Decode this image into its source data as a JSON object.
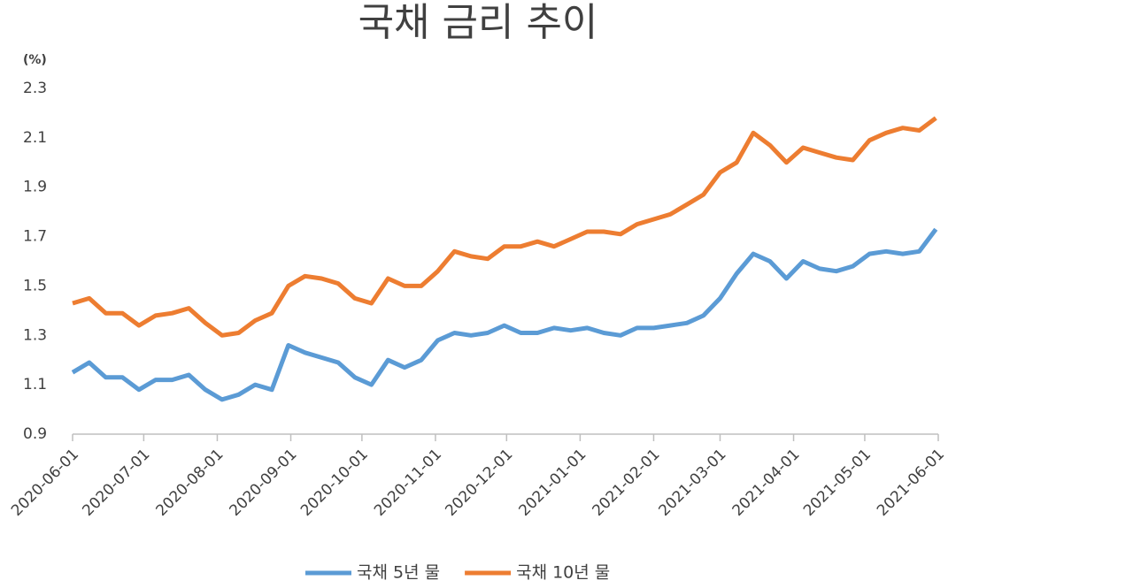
{
  "chart_data": {
    "type": "line",
    "title": "국채 금리 추이",
    "ylabel": "(%)",
    "x": [
      "2020-06-01",
      "2020-06-08",
      "2020-06-15",
      "2020-06-22",
      "2020-06-29",
      "2020-07-06",
      "2020-07-13",
      "2020-07-20",
      "2020-07-27",
      "2020-08-03",
      "2020-08-10",
      "2020-08-17",
      "2020-08-24",
      "2020-08-31",
      "2020-09-07",
      "2020-09-14",
      "2020-09-21",
      "2020-09-28",
      "2020-10-05",
      "2020-10-12",
      "2020-10-19",
      "2020-10-26",
      "2020-11-02",
      "2020-11-09",
      "2020-11-16",
      "2020-11-23",
      "2020-11-30",
      "2020-12-07",
      "2020-12-14",
      "2020-12-21",
      "2020-12-28",
      "2021-01-04",
      "2021-01-11",
      "2021-01-18",
      "2021-01-25",
      "2021-02-01",
      "2021-02-08",
      "2021-02-15",
      "2021-02-22",
      "2021-03-01",
      "2021-03-08",
      "2021-03-15",
      "2021-03-22",
      "2021-03-29",
      "2021-04-05",
      "2021-04-12",
      "2021-04-19",
      "2021-04-26",
      "2021-05-03",
      "2021-05-10",
      "2021-05-17",
      "2021-05-24",
      "2021-05-31"
    ],
    "series": [
      {
        "name": "국채 5년 물",
        "color": "#5b9bd5",
        "values": [
          1.15,
          1.19,
          1.13,
          1.13,
          1.08,
          1.12,
          1.12,
          1.14,
          1.08,
          1.04,
          1.06,
          1.1,
          1.08,
          1.26,
          1.23,
          1.21,
          1.19,
          1.13,
          1.1,
          1.2,
          1.17,
          1.2,
          1.28,
          1.31,
          1.3,
          1.31,
          1.34,
          1.31,
          1.31,
          1.33,
          1.32,
          1.33,
          1.31,
          1.3,
          1.33,
          1.33,
          1.34,
          1.35,
          1.38,
          1.45,
          1.55,
          1.63,
          1.6,
          1.53,
          1.6,
          1.57,
          1.56,
          1.58,
          1.63,
          1.64,
          1.63,
          1.64,
          1.73
        ]
      },
      {
        "name": "국채 10년 물",
        "color": "#ed7d31",
        "values": [
          1.43,
          1.45,
          1.39,
          1.39,
          1.34,
          1.38,
          1.39,
          1.41,
          1.35,
          1.3,
          1.31,
          1.36,
          1.39,
          1.5,
          1.54,
          1.53,
          1.51,
          1.45,
          1.43,
          1.53,
          1.5,
          1.5,
          1.56,
          1.64,
          1.62,
          1.61,
          1.66,
          1.66,
          1.68,
          1.66,
          1.69,
          1.72,
          1.72,
          1.71,
          1.75,
          1.77,
          1.79,
          1.83,
          1.87,
          1.96,
          2.0,
          2.12,
          2.07,
          2.0,
          2.06,
          2.04,
          2.02,
          2.01,
          2.09,
          2.12,
          2.14,
          2.13,
          2.18
        ]
      }
    ],
    "xlim": [
      "2020-06-01",
      "2021-06-01"
    ],
    "xticks": [
      "2020-06-01",
      "2020-07-01",
      "2020-08-01",
      "2020-09-01",
      "2020-10-01",
      "2020-11-01",
      "2020-12-01",
      "2021-01-01",
      "2021-02-01",
      "2021-03-01",
      "2021-04-01",
      "2021-05-01",
      "2021-06-01"
    ],
    "ylim": [
      0.9,
      2.3
    ],
    "yticks": [
      0.9,
      1.1,
      1.3,
      1.5,
      1.7,
      1.9,
      2.1,
      2.3
    ],
    "grid": false
  }
}
